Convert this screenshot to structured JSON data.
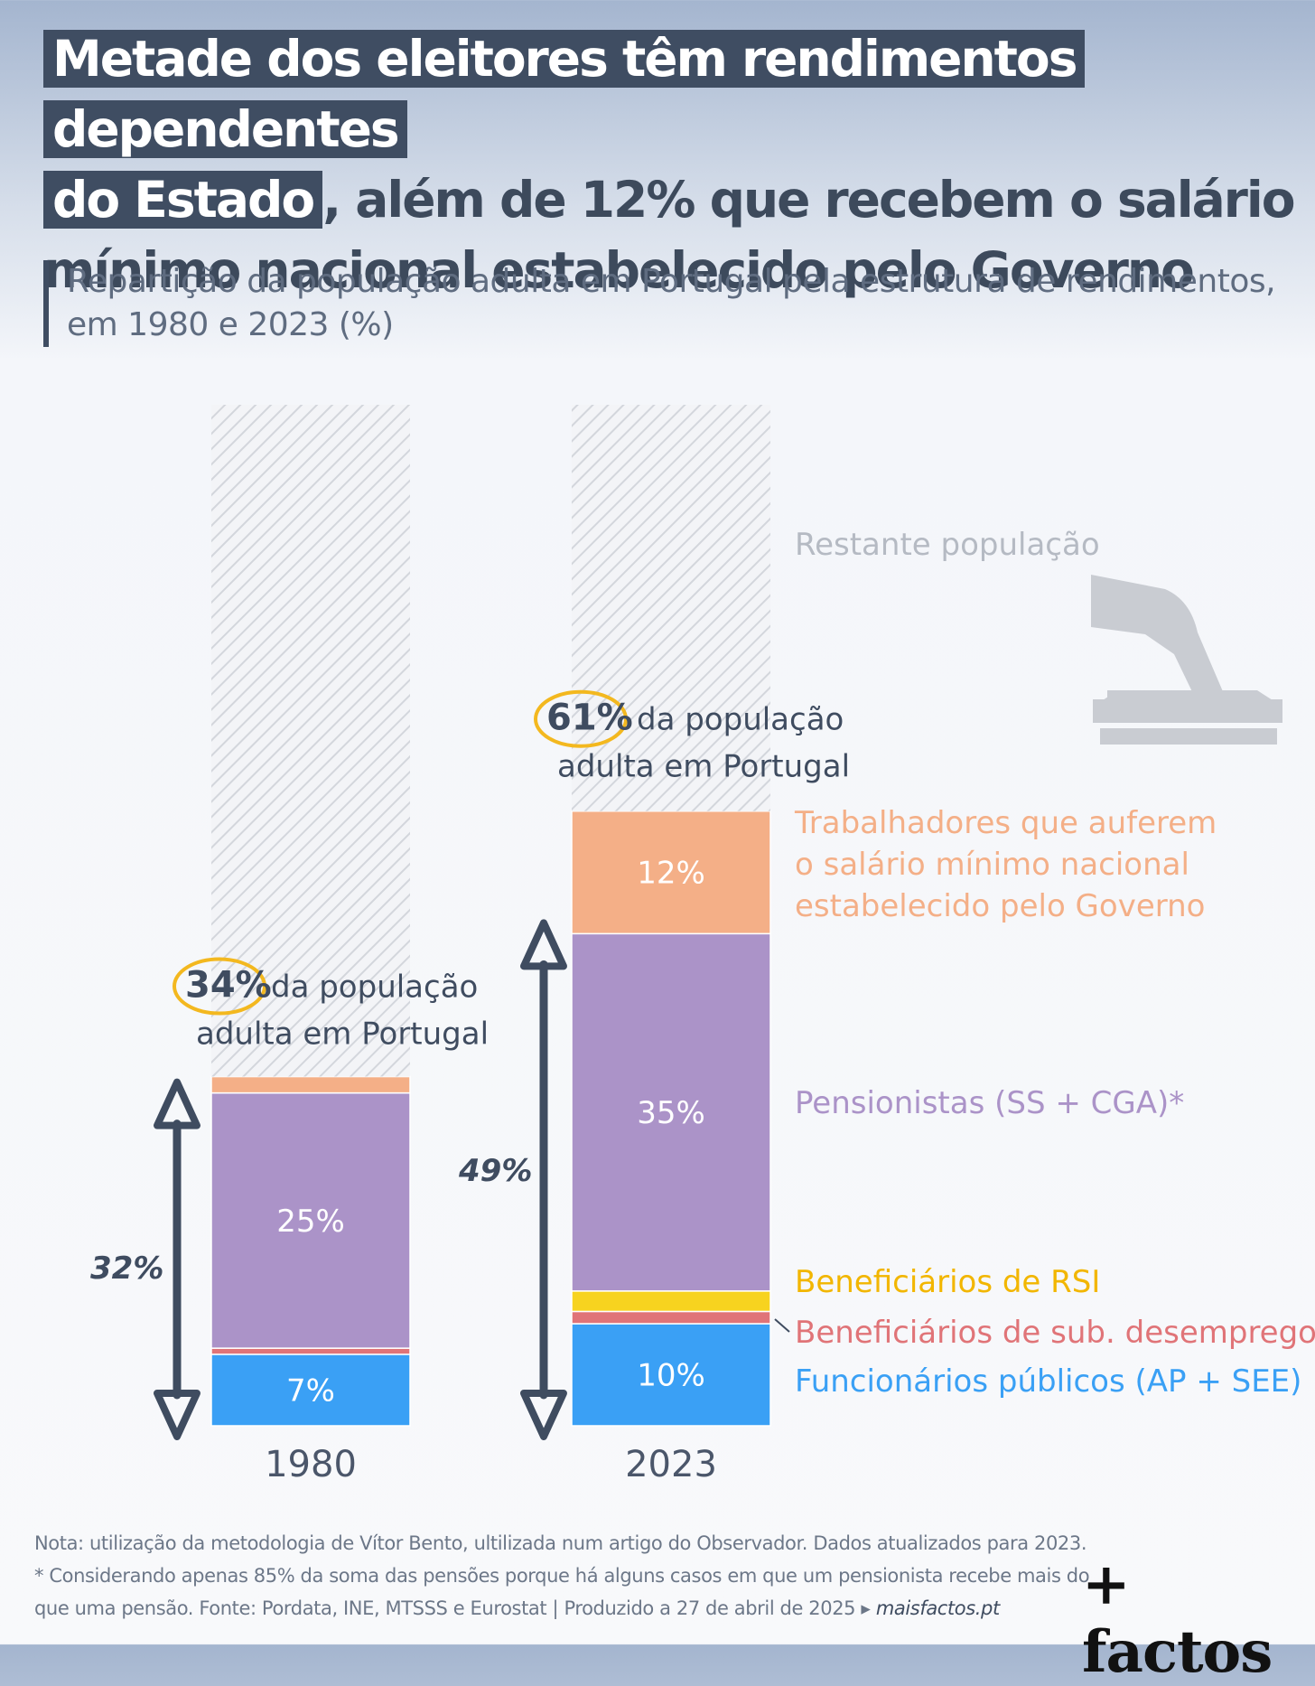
{
  "title": {
    "hl1": "Metade dos eleitores têm rendimentos dependentes",
    "hl2": "do Estado",
    "rest": ", além de 12% que recebem o salário mínimo nacional estabelecido pelo Governo"
  },
  "subtitle": "Repartição da população adulta em Portugal pela estrutura de rendimentos, em 1980 e 2023 (%)",
  "colors": {
    "trabalhadores_smn": "#f4af87",
    "pensionistas": "#ab93c8",
    "rsi": "#f7d31f",
    "desemprego": "#e07478",
    "funcionarios": "#3aa0f5",
    "restante": "#d8dbe0",
    "highlight": "#f3b81f",
    "arrow": "#3f4c60"
  },
  "chart_data": {
    "type": "bar",
    "stacked": true,
    "categories": [
      "1980",
      "2023"
    ],
    "ylim": [
      0,
      100
    ],
    "series": [
      {
        "key": "funcionarios",
        "name": "Funcionários públicos (AP + SEE)",
        "values": [
          7,
          10
        ],
        "labels": [
          "7%",
          "10%"
        ]
      },
      {
        "key": "desemprego",
        "name": "Beneficiários de sub. desemprego",
        "values": [
          0.6,
          1.2
        ],
        "labels": [
          "",
          ""
        ]
      },
      {
        "key": "rsi",
        "name": "Beneficiários de RSI",
        "values": [
          0,
          2
        ],
        "labels": [
          "",
          ""
        ]
      },
      {
        "key": "pensionistas",
        "name": "Pensionistas (SS + CGA)*",
        "values": [
          25,
          35
        ],
        "labels": [
          "25%",
          "35%"
        ]
      },
      {
        "key": "trabalhadores_smn",
        "name": "Trabalhadores que auferem o salário mínimo nacional estabelecido pelo Governo",
        "values": [
          1.6,
          12
        ],
        "labels": [
          "",
          "12%"
        ]
      },
      {
        "key": "restante",
        "name": "Restante população",
        "values": [
          65.8,
          39.8
        ],
        "labels": [
          "",
          ""
        ]
      }
    ],
    "totals": [
      {
        "value": "34%",
        "text1": "da população",
        "text2": "adulta em Portugal"
      },
      {
        "value": "61%",
        "text1": "da população",
        "text2": "adulta em Portugal"
      }
    ],
    "brackets": [
      "32%",
      "49%"
    ],
    "legend_restante": "Restante população",
    "legend_smn": [
      "Trabalhadores que auferem",
      "o salário mínimo nacional",
      "estabelecido pelo Governo"
    ]
  },
  "note": {
    "line1": "Nota: utilização da metodologia de Vítor Bento, ultilizada num artigo do Observador. Dados atualizados para 2023.",
    "line2": "* Considerando apenas 85% da soma das pensões porque há alguns casos em que um pensionista recebe mais do que uma pensão. Fonte: Pordata, INE, MTSSS e Eurostat | Produzido a 27 de abril de 2025 ▸",
    "site": "maisfactos.pt"
  },
  "logo": "+ factos"
}
